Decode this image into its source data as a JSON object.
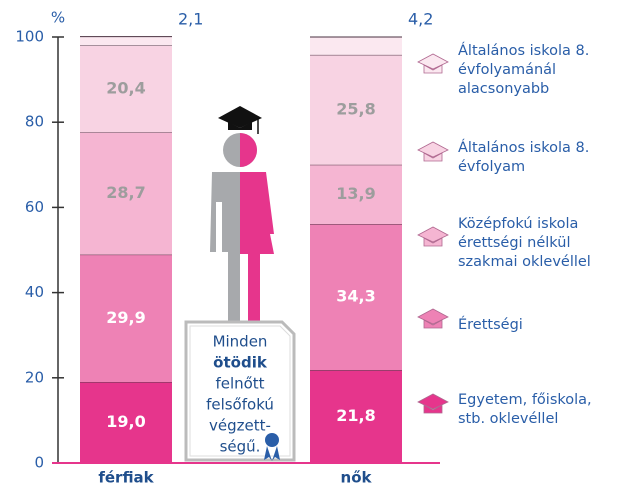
{
  "chart_data": {
    "type": "stacked_bar",
    "y_label": "%",
    "categories": [
      "férfiak",
      "nők"
    ],
    "ylim": [
      0,
      100
    ],
    "yticks": [
      0,
      20,
      40,
      60,
      80,
      100
    ],
    "series": [
      {
        "name": "Egyetem, főiskola, stb. oklevéllel",
        "color": "#e6358c",
        "values": [
          19.0,
          21.8
        ],
        "value_labels": [
          "19,0",
          "21,8"
        ]
      },
      {
        "name": "Érettségi",
        "color": "#ee82b5",
        "values": [
          29.9,
          34.3
        ],
        "value_labels": [
          "29,9",
          "34,3"
        ]
      },
      {
        "name": "Középfokú iskola érettségi nélkül szakmai oklevéllel",
        "color": "#f5b5d2",
        "values": [
          28.7,
          13.9
        ],
        "value_labels": [
          "28,7",
          "13,9"
        ]
      },
      {
        "name": "Általános iskola 8. évfolyam",
        "color": "#f8d3e3",
        "values": [
          20.4,
          25.8
        ],
        "value_labels": [
          "20,4",
          "25,8"
        ]
      },
      {
        "name": "Általános iskola 8. évfolyamánál alacsonyabb",
        "color": "#fbe8f0",
        "values": [
          2.1,
          4.2
        ],
        "value_labels": [
          "2,1",
          "4,2"
        ]
      }
    ],
    "annotation": [
      "Minden",
      "ötödik",
      "felnőtt",
      "felsőfokú",
      "végzett-",
      "ségű."
    ]
  }
}
